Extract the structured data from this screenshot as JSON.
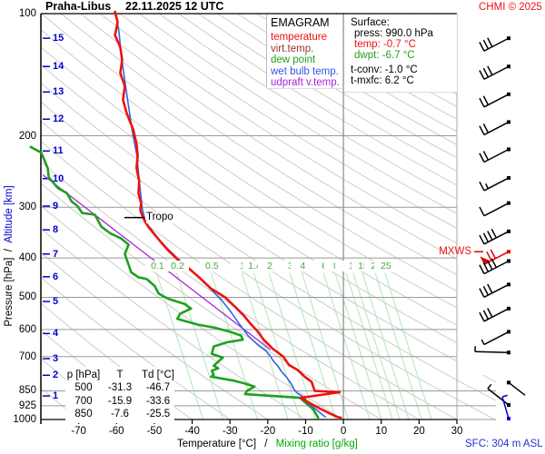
{
  "header": {
    "station": "Praha-Libus",
    "datetime": "22.11.2025 12 UTC",
    "copyright": "CHMI © 2025"
  },
  "palette": {
    "red": "#ee1111",
    "dark_red": "#993333",
    "green": "#1fa01f",
    "blue": "#3355ee",
    "purple": "#aa22dd",
    "axis_blue": "#0000cc",
    "label_green": "#44aa44",
    "caption_green": "#00aa00",
    "sfc_blue": "#2233cc",
    "black": "#000000",
    "wet_bulb_curve": "#3366dd",
    "grid": "#999999",
    "adiabat": "#cccccc",
    "mixing_line": "#b2e6b2"
  },
  "legend": {
    "title": "EMAGRAM",
    "items": [
      {
        "label": "temperature",
        "color": "#ee1111"
      },
      {
        "label": "virt.temp.",
        "color": "#993333"
      },
      {
        "label": "dew point",
        "color": "#1fa01f"
      },
      {
        "label": "wet bulb temp.",
        "color": "#3355ee"
      },
      {
        "label": "udpraft v.temp.",
        "color": "#aa22dd"
      }
    ]
  },
  "surface_panel": {
    "title": "Surface:",
    "rows": [
      {
        "label": "press: 990.0 hPa",
        "color": "#000000",
        "indent": true,
        "gap": false
      },
      {
        "label": "temp: -0.7 °C",
        "color": "#ee1111",
        "indent": true,
        "gap": false
      },
      {
        "label": "dwpt: -6.7 °C",
        "color": "#1fa01f",
        "indent": true,
        "gap": false
      },
      {
        "label": "t-conv: -1.0 °C",
        "color": "#000000",
        "indent": false,
        "gap": true
      },
      {
        "label": "t-mxfc: 6.2 °C",
        "color": "#000000",
        "indent": false,
        "gap": false
      }
    ]
  },
  "table": {
    "headers": [
      "p [hPa]",
      "T",
      "Td [°C]"
    ],
    "rows": [
      [
        "500",
        "-31.3",
        "-46.7"
      ],
      [
        "700",
        "-15.9",
        "-33.6"
      ],
      [
        "850",
        "-7.6",
        "-25.5"
      ]
    ]
  },
  "axis_captions": {
    "left_black": "Pressure [hPa]",
    "left_sep": " / ",
    "left_blue": "Altitude [km]",
    "bottom_black": "Temperature [°C]",
    "bottom_sep": "/",
    "bottom_green": "Mixing ratio [g/kg]",
    "sfc": "SFC: 304 m ASL"
  },
  "markers": {
    "tropo": "Tropo",
    "mxws": "MXWS"
  },
  "chart_data": {
    "type": "line",
    "title": "Praha-Libus 22.11.2025 12 UTC emagram sounding",
    "xlabel": "Temperature [°C]",
    "ylabel": "Pressure [hPa]",
    "t_axis": {
      "min": -80,
      "max": 30,
      "ticks": [
        -70,
        -60,
        -50,
        -40,
        -30,
        -20,
        -10,
        0,
        10,
        20,
        30
      ]
    },
    "p_axis": {
      "min": 100,
      "max": 1000,
      "labels": [
        100,
        200,
        300,
        400,
        500,
        600,
        700,
        850,
        925,
        1000
      ],
      "gridlines": [
        200,
        300,
        400,
        500,
        600,
        700,
        850,
        925,
        1000
      ],
      "extended": [
        850,
        925,
        1000
      ]
    },
    "altitude_ticks": [
      {
        "km": 1,
        "p": 875
      },
      {
        "km": 2,
        "p": 778
      },
      {
        "km": 3,
        "p": 708
      },
      {
        "km": 4,
        "p": 614
      },
      {
        "km": 5,
        "p": 512
      },
      {
        "km": 6,
        "p": 445
      },
      {
        "km": 7,
        "p": 391
      },
      {
        "km": 8,
        "p": 341
      },
      {
        "km": 9,
        "p": 298
      },
      {
        "km": 10,
        "p": 255
      },
      {
        "km": 11,
        "p": 218
      },
      {
        "km": 12,
        "p": 182
      },
      {
        "km": 13,
        "p": 156
      },
      {
        "km": 14,
        "p": 135
      },
      {
        "km": 15,
        "p": 115
      }
    ],
    "dry_adiabats": {
      "theta_start": -80,
      "theta_end": 300,
      "step": 10
    },
    "mixing_ratio": {
      "label_p": 420,
      "lines": [
        {
          "v": "0.1",
          "t": -49.4
        },
        {
          "v": "0.2",
          "t": -44.1
        },
        {
          "v": "0.5",
          "t": -35
        },
        {
          "v": "1",
          "t": -26.9
        },
        {
          "v": "1.4",
          "t": -23.7
        },
        {
          "v": "2",
          "t": -19.7
        },
        {
          "v": "3",
          "t": -14.2
        },
        {
          "v": "4",
          "t": -11
        },
        {
          "v": "6",
          "t": -5.3
        },
        {
          "v": "8",
          "t": -2.2
        },
        {
          "v": "10",
          "t": 0.7
        },
        {
          "v": "12",
          "t": 2.6
        },
        {
          "v": "15",
          "t": 5
        },
        {
          "v": "20",
          "t": 8.4
        },
        {
          "v": "25",
          "t": 11
        }
      ]
    },
    "tropopause": {
      "p": 318
    },
    "max_wind": {
      "p": 386
    },
    "series": {
      "temperature": [
        [
          -60.4,
          99
        ],
        [
          -59.7,
          105
        ],
        [
          -60.4,
          113
        ],
        [
          -59,
          121
        ],
        [
          -58.5,
          130
        ],
        [
          -59,
          140
        ],
        [
          -57.8,
          151
        ],
        [
          -58.3,
          163
        ],
        [
          -57.3,
          176
        ],
        [
          -55.6,
          193
        ],
        [
          -54.7,
          209
        ],
        [
          -54.4,
          224
        ],
        [
          -54.7,
          240
        ],
        [
          -54,
          259
        ],
        [
          -54.2,
          277
        ],
        [
          -53.5,
          293
        ],
        [
          -53.7,
          305
        ],
        [
          -53,
          318
        ],
        [
          -51.6,
          335
        ],
        [
          -49.6,
          353
        ],
        [
          -48,
          368
        ],
        [
          -46,
          386
        ],
        [
          -43.4,
          407
        ],
        [
          -40.8,
          425
        ],
        [
          -38.1,
          447
        ],
        [
          -35,
          476
        ],
        [
          -31.3,
          500
        ],
        [
          -28.5,
          529
        ],
        [
          -26.4,
          554
        ],
        [
          -24.5,
          582
        ],
        [
          -22.8,
          605
        ],
        [
          -21.1,
          636
        ],
        [
          -18.7,
          669
        ],
        [
          -15.9,
          700
        ],
        [
          -14.4,
          734
        ],
        [
          -12.2,
          754
        ],
        [
          -10.1,
          786
        ],
        [
          -8.4,
          808
        ],
        [
          -7.6,
          850
        ],
        [
          -1,
          857
        ],
        [
          -11.3,
          884
        ],
        [
          -8.9,
          911
        ],
        [
          -6.2,
          940
        ],
        [
          -3.8,
          964
        ],
        [
          -1.7,
          985
        ],
        [
          -0.7,
          990
        ]
      ],
      "dew_point": [
        [
          -82.7,
          213
        ],
        [
          -79.9,
          220
        ],
        [
          -78.2,
          240
        ],
        [
          -77.9,
          253
        ],
        [
          -75.5,
          269
        ],
        [
          -73.1,
          277
        ],
        [
          -71.9,
          290
        ],
        [
          -70.3,
          298
        ],
        [
          -69.1,
          310
        ],
        [
          -65.7,
          313
        ],
        [
          -64,
          335
        ],
        [
          -61.6,
          348
        ],
        [
          -58.8,
          358
        ],
        [
          -56.8,
          371
        ],
        [
          -57.8,
          391
        ],
        [
          -56.1,
          434
        ],
        [
          -54.2,
          446
        ],
        [
          -52,
          451
        ],
        [
          -49.9,
          469
        ],
        [
          -48.9,
          489
        ],
        [
          -47.5,
          498
        ],
        [
          -45.8,
          506
        ],
        [
          -42,
          519
        ],
        [
          -40.3,
          533
        ],
        [
          -43.2,
          549
        ],
        [
          -43.9,
          565
        ],
        [
          -38.4,
          584
        ],
        [
          -34.3,
          593
        ],
        [
          -30,
          608
        ],
        [
          -27.1,
          621
        ],
        [
          -26.6,
          636
        ],
        [
          -30.7,
          645
        ],
        [
          -34.3,
          661
        ],
        [
          -34.8,
          689
        ],
        [
          -31.9,
          704
        ],
        [
          -33.1,
          720
        ],
        [
          -34.3,
          737
        ],
        [
          -33.1,
          748
        ],
        [
          -34.8,
          758
        ],
        [
          -34.3,
          776
        ],
        [
          -35,
          784
        ],
        [
          -29,
          802
        ],
        [
          -26.4,
          814
        ],
        [
          -23.5,
          830
        ],
        [
          -25.5,
          850
        ],
        [
          -26,
          866
        ],
        [
          -11.5,
          884
        ],
        [
          -9.6,
          916
        ],
        [
          -7.9,
          945
        ],
        [
          -7.4,
          964
        ],
        [
          -6.7,
          990
        ]
      ],
      "wet_bulb": [
        [
          -60.2,
          100
        ],
        [
          -59.4,
          110
        ],
        [
          -58.6,
          130
        ],
        [
          -57.6,
          151
        ],
        [
          -55.9,
          193
        ],
        [
          -54.6,
          224
        ],
        [
          -54.2,
          246
        ],
        [
          -53.7,
          273
        ],
        [
          -53.2,
          302
        ],
        [
          -52.3,
          327
        ],
        [
          -50.4,
          344
        ],
        [
          -48.7,
          361
        ],
        [
          -46.8,
          377
        ],
        [
          -44.1,
          399
        ],
        [
          -41.5,
          420
        ],
        [
          -38.8,
          442
        ],
        [
          -35.7,
          471
        ],
        [
          -32.4,
          506
        ],
        [
          -30,
          539
        ],
        [
          -27.6,
          580
        ],
        [
          -25.2,
          622
        ],
        [
          -22.3,
          659
        ],
        [
          -20.4,
          679
        ],
        [
          -19.4,
          696
        ],
        [
          -18.7,
          714
        ],
        [
          -17.3,
          740
        ],
        [
          -16.3,
          763
        ],
        [
          -14.9,
          790
        ],
        [
          -13.9,
          814
        ],
        [
          -12.9,
          848
        ],
        [
          -12.2,
          861
        ],
        [
          -10.3,
          884
        ],
        [
          -9.1,
          916
        ],
        [
          -7.2,
          945
        ],
        [
          -5.8,
          969
        ],
        [
          -4.8,
          985
        ]
      ],
      "updraft": [
        [
          -79.4,
          250
        ],
        [
          -19.4,
          672
        ]
      ]
    },
    "wind_barbs": [
      {
        "p": 115,
        "full": 3,
        "half": 0,
        "flag": 0
      },
      {
        "p": 135,
        "full": 3,
        "half": 0,
        "flag": 0
      },
      {
        "p": 158,
        "full": 2,
        "half": 0,
        "flag": 0
      },
      {
        "p": 185,
        "full": 2,
        "half": 0,
        "flag": 0
      },
      {
        "p": 216,
        "full": 2,
        "half": 0,
        "flag": 0
      },
      {
        "p": 254,
        "full": 1,
        "half": 1,
        "flag": 0
      },
      {
        "p": 293,
        "full": 1,
        "half": 0,
        "flag": 0
      },
      {
        "p": 344,
        "full": 4,
        "half": 0,
        "flag": 0
      },
      {
        "p": 386,
        "full": 2,
        "half": 0,
        "flag": 1,
        "color": "#dd0000"
      },
      {
        "p": 407,
        "full": 4,
        "half": 0,
        "flag": 0
      },
      {
        "p": 465,
        "full": 3,
        "half": 0,
        "flag": 0
      },
      {
        "p": 533,
        "full": 3,
        "half": 0,
        "flag": 0
      },
      {
        "p": 608,
        "full": 0,
        "half": 1,
        "flag": 0
      },
      {
        "p": 684,
        "full": 0,
        "half": 1,
        "flag": 0,
        "staff": [
          -37,
          -1
        ]
      },
      {
        "p": 811,
        "full": 0,
        "half": 0,
        "flag": 0,
        "staff": [
          18,
          14
        ]
      },
      {
        "p": 921,
        "full": 0,
        "half": 1,
        "flag": 0,
        "staff": [
          -23,
          -18
        ]
      },
      {
        "p": 995,
        "full": 0,
        "half": 1,
        "flag": 0,
        "staff": [
          -7,
          -24
        ],
        "color": "#0000cc"
      }
    ]
  }
}
